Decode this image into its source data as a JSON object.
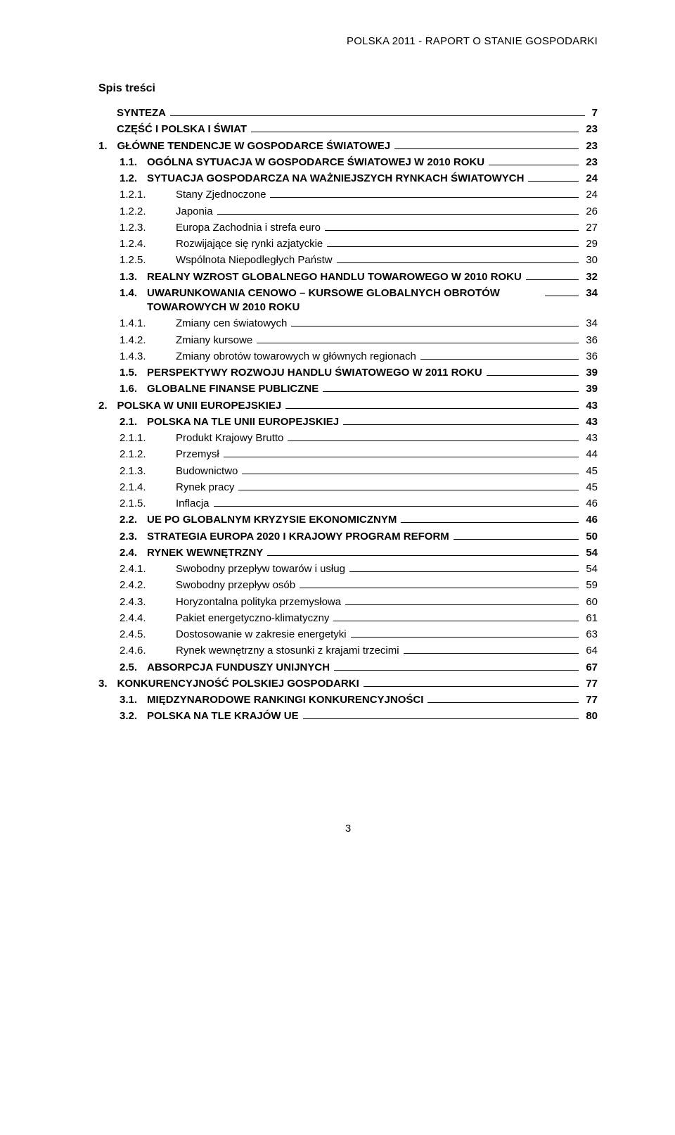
{
  "header": "POLSKA 2011 - RAPORT O STANIE GOSPODARKI",
  "title": "Spis treści",
  "page_number": "3",
  "toc": [
    {
      "lvl": 0,
      "bold": true,
      "num": "",
      "label": "SYNTEZA",
      "pg": "7"
    },
    {
      "lvl": 0,
      "bold": true,
      "num": "",
      "label": "CZĘŚĆ I POLSKA I ŚWIAT",
      "pg": "23"
    },
    {
      "lvl": 0,
      "bold": true,
      "num": "1.",
      "label": "GŁÓWNE TENDENCJE W GOSPODARCE ŚWIATOWEJ",
      "pg": "23"
    },
    {
      "lvl": 1,
      "bold": true,
      "num": "1.1.",
      "label": "OGÓLNA SYTUACJA W GOSPODARCE ŚWIATOWEJ W 2010 ROKU",
      "pg": "23"
    },
    {
      "lvl": 1,
      "bold": true,
      "num": "1.2.",
      "label": "SYTUACJA GOSPODARCZA NA WAŻNIEJSZYCH RYNKACH ŚWIATOWYCH",
      "pg": "24"
    },
    {
      "lvl": 2,
      "bold": false,
      "num": "1.2.1.",
      "label": "Stany Zjednoczone",
      "pg": "24"
    },
    {
      "lvl": 2,
      "bold": false,
      "num": "1.2.2.",
      "label": "Japonia",
      "pg": "26"
    },
    {
      "lvl": 2,
      "bold": false,
      "num": "1.2.3.",
      "label": "Europa Zachodnia i strefa euro",
      "pg": "27"
    },
    {
      "lvl": 2,
      "bold": false,
      "num": "1.2.4.",
      "label": "Rozwijające się rynki azjatyckie",
      "pg": "29"
    },
    {
      "lvl": 2,
      "bold": false,
      "num": "1.2.5.",
      "label": "Wspólnota Niepodległych Państw",
      "pg": "30"
    },
    {
      "lvl": 1,
      "bold": true,
      "num": "1.3.",
      "label": "REALNY WZROST GLOBALNEGO HANDLU TOWAROWEGO W 2010 ROKU",
      "pg": "32"
    },
    {
      "lvl": 1,
      "bold": true,
      "num": "1.4.",
      "label": "UWARUNKOWANIA CENOWO – KURSOWE GLOBALNYCH OBROTÓW TOWAROWYCH W 2010 ROKU",
      "pg": "34",
      "wrap": true
    },
    {
      "lvl": 2,
      "bold": false,
      "num": "1.4.1.",
      "label": "Zmiany cen światowych",
      "pg": "34"
    },
    {
      "lvl": 2,
      "bold": false,
      "num": "1.4.2.",
      "label": "Zmiany kursowe",
      "pg": "36"
    },
    {
      "lvl": 2,
      "bold": false,
      "num": "1.4.3.",
      "label": "Zmiany obrotów towarowych w głównych regionach",
      "pg": "36"
    },
    {
      "lvl": 1,
      "bold": true,
      "num": "1.5.",
      "label": "PERSPEKTYWY ROZWOJU HANDLU ŚWIATOWEGO W 2011 ROKU",
      "pg": "39"
    },
    {
      "lvl": 1,
      "bold": true,
      "num": "1.6.",
      "label": "GLOBALNE FINANSE PUBLICZNE",
      "pg": "39"
    },
    {
      "lvl": 0,
      "bold": true,
      "num": "2.",
      "label": "POLSKA W UNII EUROPEJSKIEJ",
      "pg": "43"
    },
    {
      "lvl": 1,
      "bold": true,
      "num": "2.1.",
      "label": "POLSKA NA TLE UNII EUROPEJSKIEJ",
      "pg": "43"
    },
    {
      "lvl": 2,
      "bold": false,
      "num": "2.1.1.",
      "label": "Produkt Krajowy Brutto",
      "pg": "43"
    },
    {
      "lvl": 2,
      "bold": false,
      "num": "2.1.2.",
      "label": "Przemysł",
      "pg": "44"
    },
    {
      "lvl": 2,
      "bold": false,
      "num": "2.1.3.",
      "label": "Budownictwo",
      "pg": "45"
    },
    {
      "lvl": 2,
      "bold": false,
      "num": "2.1.4.",
      "label": "Rynek pracy",
      "pg": "45"
    },
    {
      "lvl": 2,
      "bold": false,
      "num": "2.1.5.",
      "label": "Inflacja",
      "pg": "46"
    },
    {
      "lvl": 1,
      "bold": true,
      "num": "2.2.",
      "label": "UE PO GLOBALNYM KRYZYSIE EKONOMICZNYM",
      "pg": "46"
    },
    {
      "lvl": 1,
      "bold": true,
      "num": "2.3.",
      "label": "STRATEGIA EUROPA 2020 I KRAJOWY PROGRAM REFORM",
      "pg": "50"
    },
    {
      "lvl": 1,
      "bold": true,
      "num": "2.4.",
      "label": "RYNEK WEWNĘTRZNY",
      "pg": "54"
    },
    {
      "lvl": 2,
      "bold": false,
      "num": "2.4.1.",
      "label": "Swobodny przepływ towarów i usług",
      "pg": "54"
    },
    {
      "lvl": 2,
      "bold": false,
      "num": "2.4.2.",
      "label": "Swobodny przepływ osób",
      "pg": "59"
    },
    {
      "lvl": 2,
      "bold": false,
      "num": "2.4.3.",
      "label": "Horyzontalna polityka przemysłowa",
      "pg": "60"
    },
    {
      "lvl": 2,
      "bold": false,
      "num": "2.4.4.",
      "label": "Pakiet energetyczno-klimatyczny",
      "pg": "61"
    },
    {
      "lvl": 2,
      "bold": false,
      "num": "2.4.5.",
      "label": "Dostosowanie w zakresie energetyki",
      "pg": "63"
    },
    {
      "lvl": 2,
      "bold": false,
      "num": "2.4.6.",
      "label": "Rynek wewnętrzny a stosunki z krajami trzecimi",
      "pg": "64"
    },
    {
      "lvl": 1,
      "bold": true,
      "num": "2.5.",
      "label": "ABSORPCJA FUNDUSZY UNIJNYCH",
      "pg": "67"
    },
    {
      "lvl": 0,
      "bold": true,
      "num": "3.",
      "label": "KONKURENCYJNOŚĆ POLSKIEJ GOSPODARKI",
      "pg": "77"
    },
    {
      "lvl": 1,
      "bold": true,
      "num": "3.1.",
      "label": "MIĘDZYNARODOWE RANKINGI KONKURENCYJNOŚCI",
      "pg": "77"
    },
    {
      "lvl": 1,
      "bold": true,
      "num": "3.2.",
      "label": "POLSKA NA TLE KRAJÓW UE",
      "pg": "80"
    }
  ]
}
